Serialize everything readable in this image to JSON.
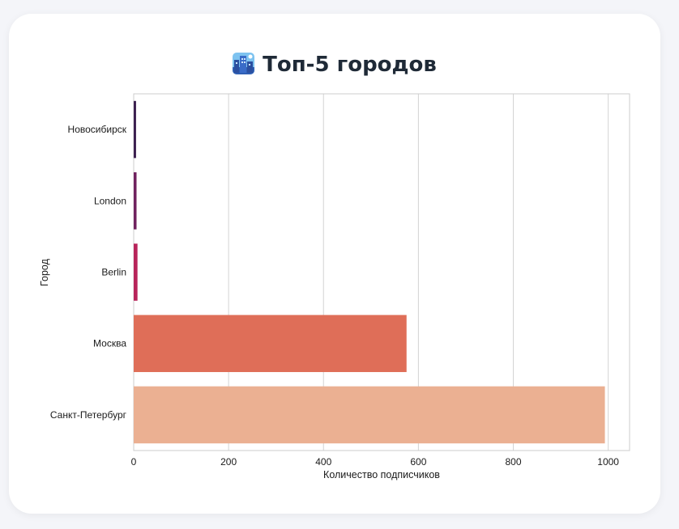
{
  "page": {
    "title": "Топ-5 городов",
    "title_icon": "cityscape-icon"
  },
  "chart_data": {
    "type": "bar",
    "orientation": "horizontal",
    "categories": [
      "Новосибирск",
      "London",
      "Berlin",
      "Москва",
      "Санкт-Петербург"
    ],
    "values": [
      5,
      6,
      8,
      575,
      993
    ],
    "colors": [
      "#3b1f4f",
      "#70225f",
      "#b8245a",
      "#df6e58",
      "#ebb092"
    ],
    "xlabel": "Количество подписчиков",
    "ylabel": "Город",
    "xlim": [
      0,
      1045
    ],
    "xticks": [
      0,
      200,
      400,
      600,
      800,
      1000
    ],
    "grid": "vertical"
  }
}
